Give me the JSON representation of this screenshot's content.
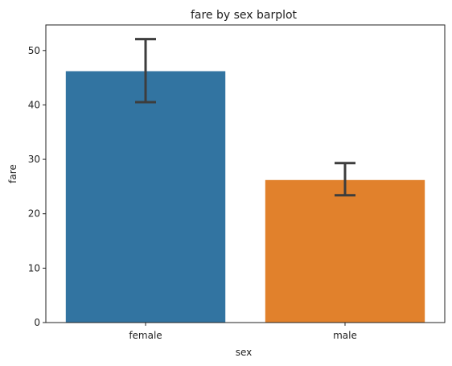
{
  "chart_data": {
    "type": "bar",
    "title": "fare by sex barplot",
    "xlabel": "sex",
    "ylabel": "fare",
    "categories": [
      "female",
      "male"
    ],
    "values": [
      46.2,
      26.2
    ],
    "error_bars": [
      {
        "low": 40.5,
        "high": 52.1
      },
      {
        "low": 23.4,
        "high": 29.3
      }
    ],
    "colors": [
      "#3274a1",
      "#e1812c"
    ],
    "ylim": [
      0,
      54.7
    ],
    "yticks": [
      0,
      10,
      20,
      30,
      40,
      50
    ],
    "grid": false,
    "legend": "none"
  }
}
